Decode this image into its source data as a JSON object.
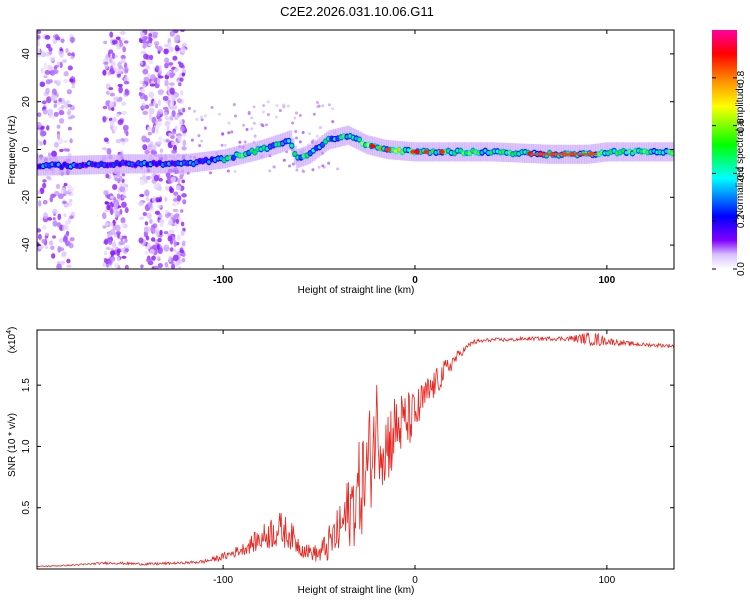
{
  "title": "C2E2.2026.031.10.06.G11",
  "chart_data": [
    {
      "type": "heatmap",
      "name": "spectrogram",
      "xlabel": "Height of straight line (km)",
      "ylabel": "Frequency (Hz)",
      "xlim": [
        -197,
        135
      ],
      "ylim": [
        -50,
        50
      ],
      "xticks": [
        -100,
        0,
        100
      ],
      "yticks": [
        -40,
        -20,
        0,
        20,
        40
      ],
      "colorbar": {
        "label": "Normalized spectral amplitude",
        "range": [
          0,
          1
        ],
        "ticks": [
          "0.0",
          "0.2",
          "0.4",
          "0.6",
          "0.8"
        ],
        "tick_values": [
          0,
          0.2,
          0.4,
          0.6,
          0.8
        ],
        "colors": [
          "#ffffff",
          "#c8a0ff",
          "#8000ff",
          "#0000ff",
          "#00ffff",
          "#00ff00",
          "#ffff00",
          "#ff8000",
          "#ff0000",
          "#ff00a0"
        ]
      },
      "ridge": [
        {
          "x": -197,
          "freq": -7
        },
        {
          "x": -150,
          "freq": -6
        },
        {
          "x": -120,
          "freq": -6
        },
        {
          "x": -100,
          "freq": -4
        },
        {
          "x": -80,
          "freq": 0
        },
        {
          "x": -65,
          "freq": 4
        },
        {
          "x": -62,
          "freq": -4
        },
        {
          "x": -55,
          "freq": -2
        },
        {
          "x": -45,
          "freq": 4
        },
        {
          "x": -35,
          "freq": 6
        },
        {
          "x": -25,
          "freq": 2
        },
        {
          "x": -15,
          "freq": 0
        },
        {
          "x": 0,
          "freq": -1
        },
        {
          "x": 20,
          "freq": -1
        },
        {
          "x": 40,
          "freq": -1
        },
        {
          "x": 70,
          "freq": -2
        },
        {
          "x": 90,
          "freq": -2
        },
        {
          "x": 100,
          "freq": -1
        },
        {
          "x": 135,
          "freq": -1
        }
      ]
    },
    {
      "type": "line",
      "name": "snr",
      "xlabel": "Height of straight line (km)",
      "ylabel": "SNR (10 * v/v)",
      "yscale_label": "(x10",
      "yscale_exp": "4",
      "yscale_close": ")",
      "xlim": [
        -197,
        135
      ],
      "ylim": [
        0,
        1.95
      ],
      "xticks": [
        -100,
        0,
        100
      ],
      "yticks": [
        0.5,
        1.0,
        1.5
      ],
      "ytick_labels": [
        "0.5",
        "1.0",
        "1.5"
      ],
      "color": "#e8251f",
      "series": [
        {
          "name": "SNR",
          "x": [
            -197,
            -180,
            -160,
            -140,
            -120,
            -110,
            -100,
            -90,
            -80,
            -75,
            -70,
            -65,
            -60,
            -55,
            -50,
            -45,
            -40,
            -35,
            -30,
            -25,
            -22,
            -20,
            -18,
            -15,
            -10,
            -5,
            0,
            5,
            10,
            15,
            20,
            25,
            30,
            40,
            50,
            60,
            70,
            80,
            90,
            95,
            100,
            110,
            120,
            135
          ],
          "y": [
            0.02,
            0.03,
            0.05,
            0.04,
            0.05,
            0.06,
            0.1,
            0.16,
            0.25,
            0.3,
            0.32,
            0.28,
            0.18,
            0.14,
            0.12,
            0.2,
            0.3,
            0.45,
            0.6,
            0.8,
            1.0,
            1.2,
            1.05,
            1.0,
            1.15,
            1.2,
            1.25,
            1.4,
            1.5,
            1.6,
            1.7,
            1.78,
            1.85,
            1.87,
            1.87,
            1.88,
            1.88,
            1.88,
            1.88,
            1.87,
            1.86,
            1.84,
            1.83,
            1.82
          ],
          "noise": [
            0.005,
            0.005,
            0.01,
            0.01,
            0.01,
            0.015,
            0.03,
            0.05,
            0.1,
            0.14,
            0.15,
            0.12,
            0.08,
            0.06,
            0.08,
            0.15,
            0.2,
            0.3,
            0.4,
            0.45,
            0.45,
            0.4,
            0.35,
            0.35,
            0.3,
            0.25,
            0.2,
            0.15,
            0.12,
            0.1,
            0.06,
            0.03,
            0.02,
            0.015,
            0.015,
            0.015,
            0.015,
            0.02,
            0.05,
            0.06,
            0.03,
            0.02,
            0.015,
            0.015
          ]
        }
      ]
    }
  ]
}
